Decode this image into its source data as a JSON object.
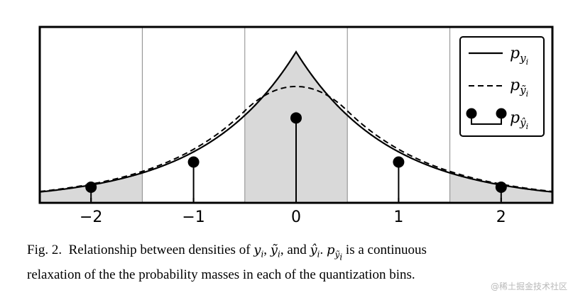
{
  "chart_data": {
    "type": "line",
    "xlim": [
      -2.5,
      2.5
    ],
    "ylim": [
      0,
      1.0
    ],
    "ticks": [
      "−2",
      "−1",
      "0",
      "1",
      "2"
    ],
    "tick_values": [
      -2,
      -1,
      0,
      1,
      2
    ],
    "bin_edges": [
      -2.5,
      -1.5,
      -0.5,
      0.5,
      1.5,
      2.5
    ],
    "shaded_bins": [
      [
        -2.5,
        -1.5
      ],
      [
        -0.5,
        0.5
      ],
      [
        1.5,
        2.5
      ]
    ],
    "grid": "vertical lines at bin edges",
    "legend_position": "top-right",
    "series": [
      {
        "name": "p_{y_i}",
        "style": "solid",
        "shape": "laplacian cusp",
        "peak": 0.95,
        "tail_at_edge": 0.06
      },
      {
        "name": "p_{ỹ_i}",
        "style": "dashed",
        "peak": 0.53
      },
      {
        "name": "p_{ŷ_i}",
        "style": "stem",
        "x": [
          -2,
          -1,
          0,
          1,
          2
        ],
        "values": [
          0.09,
          0.25,
          0.53,
          0.25,
          0.09
        ]
      }
    ],
    "colors": {
      "shade": "#d9d9d9",
      "line": "#000000",
      "gridline": "#888888"
    }
  },
  "legend": {
    "solid_base": "p",
    "solid_sub": "y",
    "solid_subsub": "i",
    "dashed_base": "p",
    "dashed_sub": "ỹ",
    "dashed_subsub": "i",
    "stem_base": "p",
    "stem_sub": "ŷ",
    "stem_subsub": "i"
  },
  "caption": {
    "prefix": "Fig. 2.",
    "text_a": "Relationship between densities of",
    "m1": "y",
    "m2": "ỹ",
    "text_and": ", and",
    "m3": "ŷ",
    "m4": "p",
    "m4_sub": "ỹ",
    "text_b": "is a continuous",
    "line2": "relaxation of the the probability masses in each of the quantization bins."
  },
  "watermark": "@稀土掘金技术社区"
}
